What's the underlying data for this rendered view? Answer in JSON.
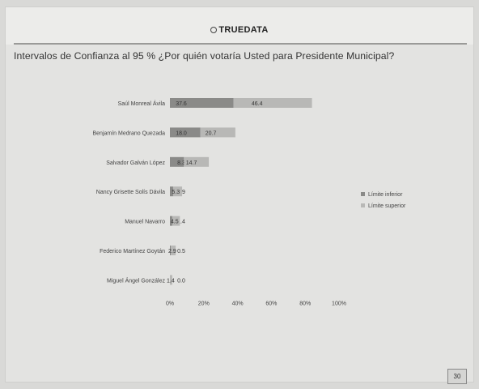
{
  "logo_text": "TRUEDATA",
  "page_number": "30",
  "chart_data": {
    "type": "bar",
    "stacked": true,
    "orientation": "horizontal",
    "title": "Intervalos de Confianza al 95 % ¿Por quién votaría Usted para Presidente Municipal?",
    "categories": [
      "Saúl Monreal Ávila",
      "Benjamín Medrano Quezada",
      "Salvador Galván López",
      "Nancy Grisette Solís Dávila",
      "Manuel Navarro",
      "Federico Martínez Goytán",
      "Miguel Ángel González"
    ],
    "series": [
      {
        "name": "Límite inferior",
        "values": [
          37.6,
          18.0,
          8.3,
          1.9,
          1.4,
          0.5,
          0.0
        ],
        "color": "#8a8a88"
      },
      {
        "name": "Límite superior",
        "values": [
          46.4,
          20.7,
          14.7,
          5.3,
          4.5,
          2.9,
          1.4
        ],
        "color": "#b8b8b6"
      }
    ],
    "data_labels": [
      [
        "37.6",
        "46.4"
      ],
      [
        "18.0",
        "20.7"
      ],
      [
        "8.3",
        "14.7"
      ],
      [
        "1.9",
        "5.3"
      ],
      [
        "1.4",
        "4.5"
      ],
      [
        "0.5",
        "2.9"
      ],
      [
        "0.0",
        "1.4"
      ]
    ],
    "x_ticks": [
      "0%",
      "20%",
      "40%",
      "60%",
      "80%",
      "100%"
    ],
    "xlim": [
      0,
      100
    ],
    "legend_position": "right",
    "grid": false
  }
}
